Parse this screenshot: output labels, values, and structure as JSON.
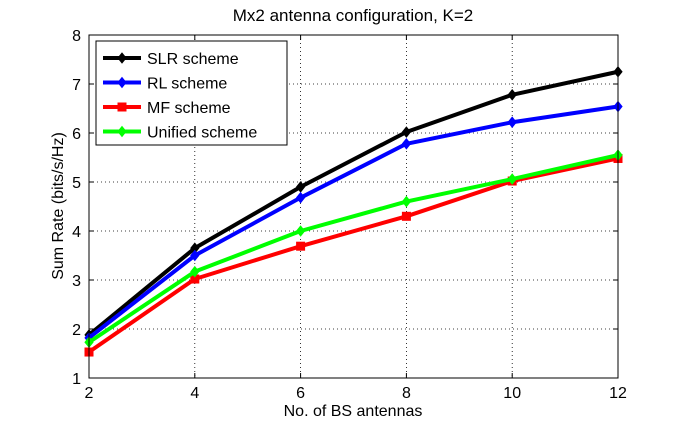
{
  "chart_data": {
    "type": "line",
    "title": "Mx2 antenna configuration, K=2",
    "xlabel": "No. of BS antennas",
    "ylabel": "Sum Rate (bits/s/Hz)",
    "x": [
      2,
      4,
      6,
      8,
      10,
      12
    ],
    "xlim": [
      2,
      12
    ],
    "ylim": [
      1,
      8
    ],
    "xticks": [
      2,
      4,
      6,
      8,
      10,
      12
    ],
    "yticks": [
      1,
      2,
      3,
      4,
      5,
      6,
      7,
      8
    ],
    "grid": true,
    "legend_position": "top-left",
    "series": [
      {
        "name": "SLR scheme",
        "color": "#000000",
        "marker": "diamond",
        "values": [
          1.88,
          3.65,
          4.9,
          6.02,
          6.78,
          7.25
        ]
      },
      {
        "name": "RL scheme",
        "color": "#0000ff",
        "marker": "diamond",
        "values": [
          1.82,
          3.5,
          4.68,
          5.78,
          6.22,
          6.54
        ]
      },
      {
        "name": "MF scheme",
        "color": "#ff0000",
        "marker": "square",
        "values": [
          1.53,
          3.02,
          3.69,
          4.3,
          5.02,
          5.48
        ]
      },
      {
        "name": "Unified scheme",
        "color": "#00ff00",
        "marker": "diamond",
        "values": [
          1.73,
          3.17,
          4.0,
          4.6,
          5.06,
          5.55
        ]
      }
    ]
  }
}
